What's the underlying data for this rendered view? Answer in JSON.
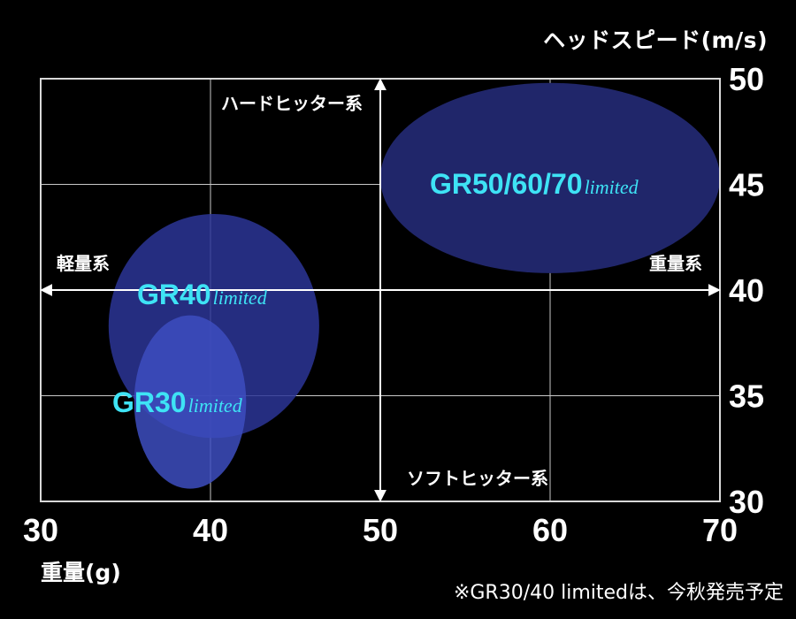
{
  "chart_data": {
    "type": "bubble",
    "title": "",
    "xlabel": "重量(g)",
    "ylabel": "ヘッドスピード(m/s)",
    "xlim": [
      30,
      70
    ],
    "ylim": [
      30,
      50
    ],
    "xticks": [
      "30",
      "40",
      "50",
      "60",
      "70"
    ],
    "yticks": [
      "30",
      "35",
      "40",
      "45",
      "50"
    ],
    "grid": true,
    "series": [
      {
        "name": "GR50/60/70",
        "suffix": "limited",
        "center": [
          60,
          45.3
        ],
        "radius": [
          10,
          4.5
        ],
        "color": "#20266a"
      },
      {
        "name": "GR40",
        "suffix": "limited",
        "center": [
          40.2,
          38.3
        ],
        "radius": [
          6.2,
          5.3
        ],
        "color": "#2b3596"
      },
      {
        "name": "GR30",
        "suffix": "limited",
        "center": [
          38.8,
          34.7
        ],
        "radius": [
          3.3,
          4.1
        ],
        "color": "#3d4dbf"
      }
    ],
    "annotations": {
      "hard_hitter": "ハードヒッター系",
      "soft_hitter": "ソフトヒッター系",
      "light": "軽量系",
      "heavy": "重量系"
    },
    "label_color": "#3ee3f5",
    "footnote": "※GR30/40 limitedは、今秋発売予定"
  }
}
